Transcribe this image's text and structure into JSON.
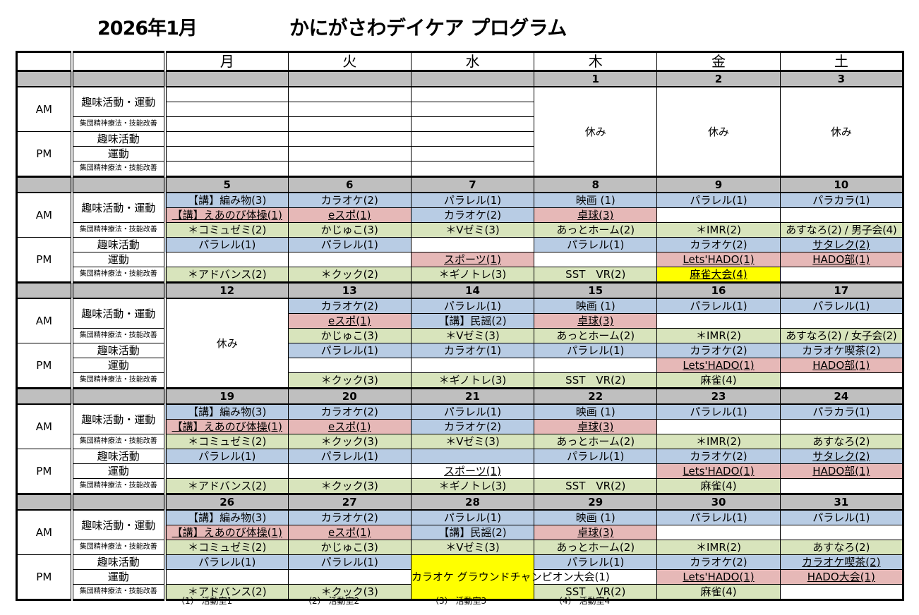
{
  "title": {
    "month": "2026年1月",
    "program": "かにがさわデイケア プログラム"
  },
  "weekdays": [
    "月",
    "火",
    "水",
    "木",
    "金",
    "土"
  ],
  "labels": {
    "am": "AM",
    "pm": "PM",
    "am_hobby_exercise": "趣味活動・運動",
    "group_therapy": "集団精神療法・技能改善",
    "pm_hobby": "趣味活動",
    "pm_exercise": "運動"
  },
  "colors": {
    "B": "#b8cce4",
    "P": "#e6b8b7",
    "G": "#d8e4bc",
    "Y": "#ffff00",
    "date_row": "#bfbfbf"
  },
  "weeks": [
    {
      "days": [
        {
          "date": "",
          "items": [
            {
              "t": "",
              "c": "W"
            },
            {
              "t": "",
              "c": "W"
            },
            {
              "t": "",
              "c": "W"
            },
            {
              "t": "",
              "c": "W"
            },
            {
              "t": "",
              "c": "W"
            },
            {
              "t": "",
              "c": "W"
            }
          ]
        },
        {
          "date": "",
          "items": [
            {
              "t": "",
              "c": "W"
            },
            {
              "t": "",
              "c": "W"
            },
            {
              "t": "",
              "c": "W"
            },
            {
              "t": "",
              "c": "W"
            },
            {
              "t": "",
              "c": "W"
            },
            {
              "t": "",
              "c": "W"
            }
          ]
        },
        {
          "date": "",
          "items": [
            {
              "t": "",
              "c": "W"
            },
            {
              "t": "",
              "c": "W"
            },
            {
              "t": "",
              "c": "W"
            },
            {
              "t": "",
              "c": "W"
            },
            {
              "t": "",
              "c": "W"
            },
            {
              "t": "",
              "c": "W"
            }
          ]
        },
        {
          "date": "1",
          "items": [
            {
              "t": "休み",
              "c": "W",
              "span": 6
            }
          ]
        },
        {
          "date": "2",
          "items": [
            {
              "t": "休み",
              "c": "W",
              "span": 6
            }
          ]
        },
        {
          "date": "3",
          "items": [
            {
              "t": "休み",
              "c": "W",
              "span": 6
            }
          ]
        }
      ]
    },
    {
      "days": [
        {
          "date": "5",
          "items": [
            {
              "t": "【講】編み物(3)",
              "c": "B"
            },
            {
              "t": "【講】えあのび体操(1)",
              "c": "P",
              "u": true
            },
            {
              "t": "＊コミュゼミ(2)",
              "c": "G"
            },
            {
              "t": "パラレル(1)",
              "c": "B"
            },
            {
              "t": "",
              "c": "W"
            },
            {
              "t": "＊アドバンス(2)",
              "c": "G"
            }
          ]
        },
        {
          "date": "6",
          "items": [
            {
              "t": "カラオケ(2)",
              "c": "B"
            },
            {
              "t": "eスポ(1)",
              "c": "P",
              "u": true
            },
            {
              "t": "かじゅこ(3)",
              "c": "G"
            },
            {
              "t": "パラレル(1)",
              "c": "B"
            },
            {
              "t": "",
              "c": "W"
            },
            {
              "t": "＊クック(2)",
              "c": "G"
            }
          ]
        },
        {
          "date": "7",
          "items": [
            {
              "t": "パラレル(1)",
              "c": "B"
            },
            {
              "t": "カラオケ(2)",
              "c": "B"
            },
            {
              "t": "＊Vゼミ(3)",
              "c": "G"
            },
            {
              "t": "",
              "c": "W"
            },
            {
              "t": "スポーツ(1)",
              "c": "P",
              "u": true
            },
            {
              "t": "＊ギノトレ(3)",
              "c": "G"
            }
          ]
        },
        {
          "date": "8",
          "items": [
            {
              "t": "映画 (1)",
              "c": "B"
            },
            {
              "t": "卓球(3)",
              "c": "P",
              "u": true
            },
            {
              "t": "あっとホーム(2)",
              "c": "G"
            },
            {
              "t": "パラレル(1)",
              "c": "B"
            },
            {
              "t": "",
              "c": "W"
            },
            {
              "t": "SST　VR(2)",
              "c": "G"
            }
          ]
        },
        {
          "date": "9",
          "items": [
            {
              "t": "パラレル(1)",
              "c": "B"
            },
            {
              "t": "",
              "c": "W"
            },
            {
              "t": "＊IMR(2)",
              "c": "G"
            },
            {
              "t": "カラオケ(2)",
              "c": "B"
            },
            {
              "t": "Lets'HADO(1)",
              "c": "P",
              "u": true
            },
            {
              "t": "麻雀大会(4)",
              "c": "Y",
              "u": true
            }
          ]
        },
        {
          "date": "10",
          "items": [
            {
              "t": "パラカラ(1)",
              "c": "B"
            },
            {
              "t": "",
              "c": "W"
            },
            {
              "t": "あすなろ(2) / 男子会(4)",
              "c": "G",
              "sm": true
            },
            {
              "t": "サタレク(2)",
              "c": "B",
              "u": true
            },
            {
              "t": "HADO部(1)",
              "c": "P",
              "u": true
            },
            {
              "t": "",
              "c": "W"
            }
          ]
        }
      ]
    },
    {
      "days": [
        {
          "date": "12",
          "items": [
            {
              "t": "休み",
              "c": "W",
              "span": 6
            }
          ]
        },
        {
          "date": "13",
          "items": [
            {
              "t": "カラオケ(2)",
              "c": "B"
            },
            {
              "t": "eスポ(1)",
              "c": "P",
              "u": true
            },
            {
              "t": "かじゅこ(3)",
              "c": "G"
            },
            {
              "t": "パラレル(1)",
              "c": "B"
            },
            {
              "t": "",
              "c": "W"
            },
            {
              "t": "＊クック(3)",
              "c": "G"
            }
          ]
        },
        {
          "date": "14",
          "items": [
            {
              "t": "パラレル(1)",
              "c": "B"
            },
            {
              "t": "【講】民謡(2)",
              "c": "B"
            },
            {
              "t": "＊Vゼミ(3)",
              "c": "G"
            },
            {
              "t": "カラオケ(1)",
              "c": "B"
            },
            {
              "t": "",
              "c": "W"
            },
            {
              "t": "＊ギノトレ(3)",
              "c": "G"
            }
          ]
        },
        {
          "date": "15",
          "items": [
            {
              "t": "映画 (1)",
              "c": "B"
            },
            {
              "t": "卓球(3)",
              "c": "P",
              "u": true
            },
            {
              "t": "あっとホーム(2)",
              "c": "G"
            },
            {
              "t": "パラレル(1)",
              "c": "B"
            },
            {
              "t": "",
              "c": "W"
            },
            {
              "t": "SST　VR(2)",
              "c": "G"
            }
          ]
        },
        {
          "date": "16",
          "items": [
            {
              "t": "パラレル(1)",
              "c": "B"
            },
            {
              "t": "",
              "c": "W"
            },
            {
              "t": "＊IMR(2)",
              "c": "G"
            },
            {
              "t": "カラオケ(2)",
              "c": "B"
            },
            {
              "t": "Lets'HADO(1)",
              "c": "P",
              "u": true
            },
            {
              "t": "麻雀(4)",
              "c": "G"
            }
          ]
        },
        {
          "date": "17",
          "items": [
            {
              "t": "パラレル(1)",
              "c": "B"
            },
            {
              "t": "",
              "c": "W"
            },
            {
              "t": "あすなろ(2) / 女子会(2)",
              "c": "G",
              "sm": true
            },
            {
              "t": "カラオケ喫茶(2)",
              "c": "B"
            },
            {
              "t": "HADO部(1)",
              "c": "P",
              "u": true
            },
            {
              "t": "",
              "c": "W"
            }
          ]
        }
      ]
    },
    {
      "days": [
        {
          "date": "19",
          "items": [
            {
              "t": "【講】編み物(3)",
              "c": "B"
            },
            {
              "t": "【講】えあのび体操(1)",
              "c": "P",
              "u": true
            },
            {
              "t": "＊コミュゼミ(2)",
              "c": "G"
            },
            {
              "t": "パラレル(1)",
              "c": "B"
            },
            {
              "t": "",
              "c": "W"
            },
            {
              "t": "＊アドバンス(2)",
              "c": "G"
            }
          ]
        },
        {
          "date": "20",
          "items": [
            {
              "t": "カラオケ(2)",
              "c": "B"
            },
            {
              "t": "eスポ(1)",
              "c": "P",
              "u": true
            },
            {
              "t": "＊クック(3)",
              "c": "G"
            },
            {
              "t": "パラレル(1)",
              "c": "B"
            },
            {
              "t": "",
              "c": "W"
            },
            {
              "t": "＊クック(3)",
              "c": "G"
            }
          ]
        },
        {
          "date": "21",
          "items": [
            {
              "t": "パラレル(1)",
              "c": "B"
            },
            {
              "t": "カラオケ(2)",
              "c": "B"
            },
            {
              "t": "＊Vゼミ(3)",
              "c": "G"
            },
            {
              "t": "",
              "c": "B"
            },
            {
              "t": "スポーツ(1)",
              "c": "W",
              "u": true
            },
            {
              "t": "＊ギノトレ(3)",
              "c": "G"
            }
          ]
        },
        {
          "date": "22",
          "items": [
            {
              "t": "映画 (1)",
              "c": "B"
            },
            {
              "t": "卓球(3)",
              "c": "P",
              "u": true
            },
            {
              "t": "あっとホーム(2)",
              "c": "G"
            },
            {
              "t": "パラレル(1)",
              "c": "B"
            },
            {
              "t": "",
              "c": "W"
            },
            {
              "t": "SST　VR(2)",
              "c": "G"
            }
          ]
        },
        {
          "date": "23",
          "items": [
            {
              "t": "パラレル(1)",
              "c": "B"
            },
            {
              "t": "",
              "c": "W"
            },
            {
              "t": "＊IMR(2)",
              "c": "G"
            },
            {
              "t": "カラオケ(2)",
              "c": "B"
            },
            {
              "t": "Lets'HADO(1)",
              "c": "P",
              "u": true
            },
            {
              "t": "麻雀(4)",
              "c": "G"
            }
          ]
        },
        {
          "date": "24",
          "items": [
            {
              "t": "パラカラ(1)",
              "c": "B"
            },
            {
              "t": "",
              "c": "W"
            },
            {
              "t": "あすなろ(2)",
              "c": "G"
            },
            {
              "t": "サタレク(2)",
              "c": "B",
              "u": true
            },
            {
              "t": "HADO部(1)",
              "c": "P",
              "u": true
            },
            {
              "t": "",
              "c": "W"
            }
          ]
        }
      ]
    },
    {
      "days": [
        {
          "date": "26",
          "items": [
            {
              "t": "【講】編み物(3)",
              "c": "B"
            },
            {
              "t": "【講】えあのび体操(1)",
              "c": "P",
              "u": true
            },
            {
              "t": "＊コミュゼミ(2)",
              "c": "G"
            },
            {
              "t": "パラレル(1)",
              "c": "B"
            },
            {
              "t": "",
              "c": "W"
            },
            {
              "t": "＊アドバンス(2)",
              "c": "G"
            }
          ]
        },
        {
          "date": "27",
          "items": [
            {
              "t": "カラオケ(2)",
              "c": "B"
            },
            {
              "t": "eスポ(1)",
              "c": "P",
              "u": true
            },
            {
              "t": "かじゅこ(3)",
              "c": "G"
            },
            {
              "t": "パラレル(1)",
              "c": "B"
            },
            {
              "t": "",
              "c": "W"
            },
            {
              "t": "＊クック(3)",
              "c": "G"
            }
          ]
        },
        {
          "date": "28",
          "items": [
            {
              "t": "パラレル(1)",
              "c": "B"
            },
            {
              "t": "【講】民謡(2)",
              "c": "B"
            },
            {
              "t": "＊Vゼミ(3)",
              "c": "G"
            },
            {
              "t": "カラオケ グラウンドチャンピオン大会(1)",
              "c": "Y",
              "span": 3
            }
          ]
        },
        {
          "date": "29",
          "items": [
            {
              "t": "映画 (1)",
              "c": "B"
            },
            {
              "t": "卓球(3)",
              "c": "P",
              "u": true
            },
            {
              "t": "あっとホーム(2)",
              "c": "G"
            },
            {
              "t": "パラレル(1)",
              "c": "B"
            },
            {
              "t": "",
              "c": "W"
            },
            {
              "t": "SST　VR(2)",
              "c": "G"
            }
          ]
        },
        {
          "date": "30",
          "items": [
            {
              "t": "パラレル(1)",
              "c": "B"
            },
            {
              "t": "",
              "c": "W"
            },
            {
              "t": "＊IMR(2)",
              "c": "G"
            },
            {
              "t": "カラオケ(2)",
              "c": "B"
            },
            {
              "t": "Lets'HADO(1)",
              "c": "P",
              "u": true
            },
            {
              "t": "麻雀(4)",
              "c": "G"
            }
          ]
        },
        {
          "date": "31",
          "items": [
            {
              "t": "パラレル(1)",
              "c": "B"
            },
            {
              "t": "",
              "c": "W"
            },
            {
              "t": "あすなろ(2)",
              "c": "G"
            },
            {
              "t": "カラオケ喫茶(2)",
              "c": "B",
              "u": true
            },
            {
              "t": "HADO大会(1)",
              "c": "P",
              "u": true
            },
            {
              "t": "",
              "c": "W"
            }
          ]
        }
      ]
    }
  ],
  "legend": [
    "（1） 活動室1",
    "（2） 活動室2",
    "（3） 活動室3",
    "（4） 活動室4"
  ]
}
